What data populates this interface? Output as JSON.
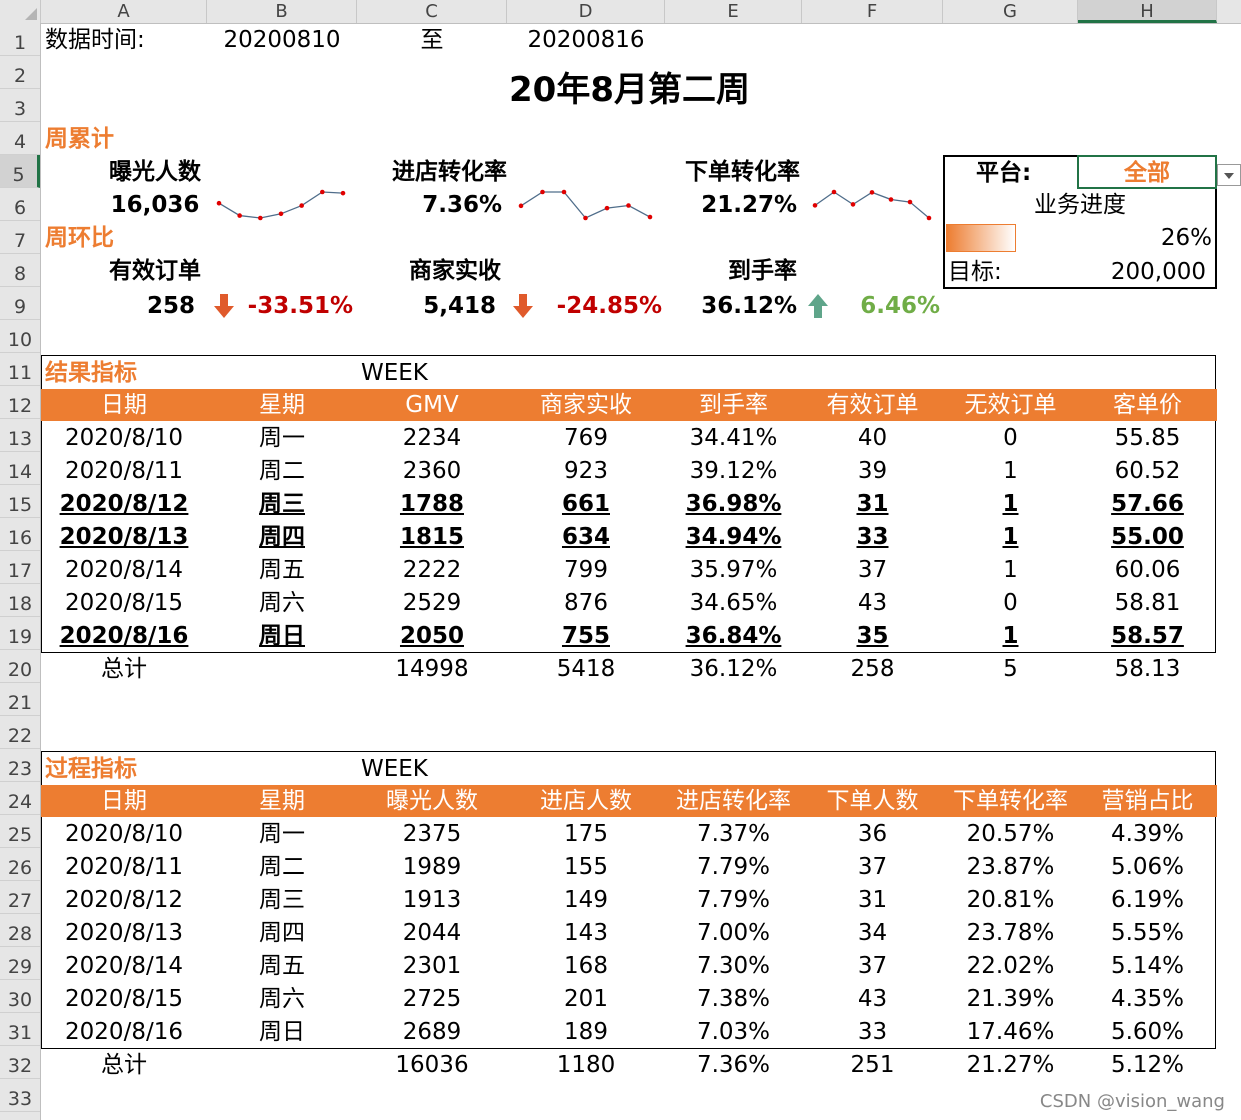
{
  "columns": [
    "A",
    "B",
    "C",
    "D",
    "E",
    "F",
    "G",
    "H"
  ],
  "rows": [
    "1",
    "2",
    "3",
    "4",
    "5",
    "6",
    "7",
    "8",
    "9",
    "10",
    "11",
    "12",
    "13",
    "14",
    "15",
    "16",
    "17",
    "18",
    "19",
    "20",
    "21",
    "22",
    "23",
    "24",
    "25",
    "26",
    "27",
    "28",
    "29",
    "30",
    "31",
    "32",
    "33"
  ],
  "header": {
    "data_time_label": "数据时间:",
    "start_date": "20200810",
    "to_label": "至",
    "end_date": "20200816",
    "title": "20年8月第二周"
  },
  "weekly_total": {
    "label": "周累计",
    "exposure_label": "曝光人数",
    "exposure_value": "16,036",
    "store_conv_label": "进店转化率",
    "store_conv_value": "7.36%",
    "order_conv_label": "下单转化率",
    "order_conv_value": "21.27%"
  },
  "sparklines": {
    "exposure": [
      2375,
      1989,
      1913,
      2044,
      2301,
      2725,
      2689
    ],
    "store_conv": [
      7.37,
      7.79,
      7.79,
      7.0,
      7.3,
      7.38,
      7.03
    ],
    "order_conv": [
      20.57,
      23.87,
      20.81,
      23.78,
      22.02,
      21.39,
      17.46
    ],
    "line_color": "#4f6d8a",
    "marker_color": "#e00000"
  },
  "week_on_week": {
    "label": "周环比",
    "orders_label": "有效订单",
    "orders_value": "258",
    "orders_change": "-33.51%",
    "income_label": "商家实收",
    "income_value": "5,418",
    "income_change": "-24.85%",
    "rate_label": "到手率",
    "rate_value": "36.12%",
    "rate_change": "6.46%"
  },
  "progress": {
    "platform_label": "平台:",
    "platform_value": "全部",
    "progress_label": "业务进度",
    "progress_fraction": 0.26,
    "progress_value": "26%",
    "target_label": "目标:",
    "target_value": "200,000"
  },
  "result_table": {
    "section_label": "结果指标",
    "week_label": "WEEK",
    "headers": [
      "日期",
      "星期",
      "GMV",
      "商家实收",
      "到手率",
      "有效订单",
      "无效订单",
      "客单价"
    ],
    "rows": [
      {
        "cells": [
          "2020/8/10",
          "周一",
          "2234",
          "769",
          "34.41%",
          "40",
          "0",
          "55.85"
        ],
        "bold": false
      },
      {
        "cells": [
          "2020/8/11",
          "周二",
          "2360",
          "923",
          "39.12%",
          "39",
          "1",
          "60.52"
        ],
        "bold": false
      },
      {
        "cells": [
          "2020/8/12",
          "周三",
          "1788",
          "661",
          "36.98%",
          "31",
          "1",
          "57.66"
        ],
        "bold": true
      },
      {
        "cells": [
          "2020/8/13",
          "周四",
          "1815",
          "634",
          "34.94%",
          "33",
          "1",
          "55.00"
        ],
        "bold": true
      },
      {
        "cells": [
          "2020/8/14",
          "周五",
          "2222",
          "799",
          "35.97%",
          "37",
          "1",
          "60.06"
        ],
        "bold": false
      },
      {
        "cells": [
          "2020/8/15",
          "周六",
          "2529",
          "876",
          "34.65%",
          "43",
          "0",
          "58.81"
        ],
        "bold": false
      },
      {
        "cells": [
          "2020/8/16",
          "周日",
          "2050",
          "755",
          "36.84%",
          "35",
          "1",
          "58.57"
        ],
        "bold": true
      }
    ],
    "total": [
      "总计",
      "",
      "14998",
      "5418",
      "36.12%",
      "258",
      "5",
      "58.13"
    ]
  },
  "process_table": {
    "section_label": "过程指标",
    "week_label": "WEEK",
    "headers": [
      "日期",
      "星期",
      "曝光人数",
      "进店人数",
      "进店转化率",
      "下单人数",
      "下单转化率",
      "营销占比"
    ],
    "rows": [
      {
        "cells": [
          "2020/8/10",
          "周一",
          "2375",
          "175",
          "7.37%",
          "36",
          "20.57%",
          "4.39%"
        ],
        "bold": false
      },
      {
        "cells": [
          "2020/8/11",
          "周二",
          "1989",
          "155",
          "7.79%",
          "37",
          "23.87%",
          "5.06%"
        ],
        "bold": false
      },
      {
        "cells": [
          "2020/8/12",
          "周三",
          "1913",
          "149",
          "7.79%",
          "31",
          "20.81%",
          "6.19%"
        ],
        "bold": false
      },
      {
        "cells": [
          "2020/8/13",
          "周四",
          "2044",
          "143",
          "7.00%",
          "34",
          "23.78%",
          "5.55%"
        ],
        "bold": false
      },
      {
        "cells": [
          "2020/8/14",
          "周五",
          "2301",
          "168",
          "7.30%",
          "37",
          "22.02%",
          "5.14%"
        ],
        "bold": false
      },
      {
        "cells": [
          "2020/8/15",
          "周六",
          "2725",
          "201",
          "7.38%",
          "43",
          "21.39%",
          "4.35%"
        ],
        "bold": false
      },
      {
        "cells": [
          "2020/8/16",
          "周日",
          "2689",
          "189",
          "7.03%",
          "33",
          "17.46%",
          "5.60%"
        ],
        "bold": false
      }
    ],
    "total": [
      "总计",
      "",
      "16036",
      "1180",
      "7.36%",
      "251",
      "21.27%",
      "5.12%"
    ]
  },
  "colors": {
    "accent": "#ed7d31",
    "down_arrow": "#e05a2b",
    "up_arrow": "#5fa58a",
    "negative": "#c00000",
    "positive": "#70ad47"
  },
  "watermark": "CSDN @vision_wang"
}
